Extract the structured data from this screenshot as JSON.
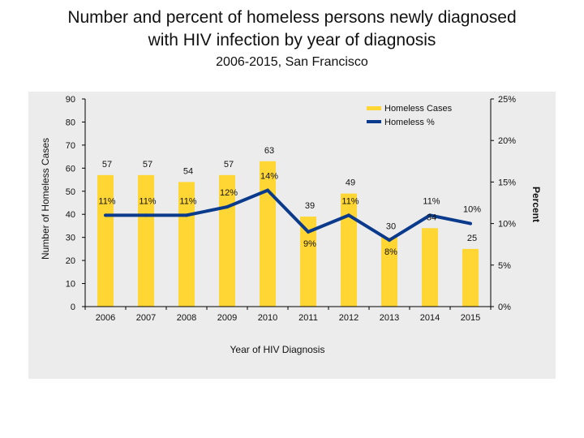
{
  "title_line1": "Number and percent of homeless persons newly diagnosed",
  "title_line2": "with HIV infection by year of diagnosis",
  "subtitle": "2006-2015, San Francisco",
  "colors": {
    "bar": "#FFD633",
    "line": "#0A3A8C",
    "panel": "#ECECEC"
  },
  "chart_data": {
    "type": "bar",
    "categories": [
      "2006",
      "2007",
      "2008",
      "2009",
      "2010",
      "2011",
      "2012",
      "2013",
      "2014",
      "2015"
    ],
    "series": [
      {
        "name": "Homeless Cases",
        "type": "bar",
        "axis": "left",
        "values": [
          57,
          57,
          54,
          57,
          63,
          39,
          49,
          30,
          34,
          25
        ],
        "labels": [
          "57",
          "57",
          "54",
          "57",
          "63",
          "39",
          "49",
          "30",
          "34",
          "25"
        ]
      },
      {
        "name": "Homeless %",
        "type": "line",
        "axis": "right",
        "values": [
          11,
          11,
          11,
          12,
          14,
          9,
          11,
          8,
          11,
          10
        ],
        "labels": [
          "11%",
          "11%",
          "11%",
          "12%",
          "14%",
          "9%",
          "11%",
          "8%",
          "11%",
          "10%"
        ]
      }
    ],
    "xlabel": "Year of HIV Diagnosis",
    "ylabel": "Number of Homeless Cases",
    "y2label": "Percent",
    "ylim": [
      0,
      90
    ],
    "y2lim": [
      0,
      25
    ],
    "yticks": [
      "0",
      "10",
      "20",
      "30",
      "40",
      "50",
      "60",
      "70",
      "80",
      "90"
    ],
    "y2ticks": [
      "0%",
      "5%",
      "10%",
      "15%",
      "20%",
      "25%"
    ],
    "legend": {
      "position": "top-right",
      "entries": [
        "Homeless Cases",
        "Homeless %"
      ]
    },
    "grid": false
  }
}
